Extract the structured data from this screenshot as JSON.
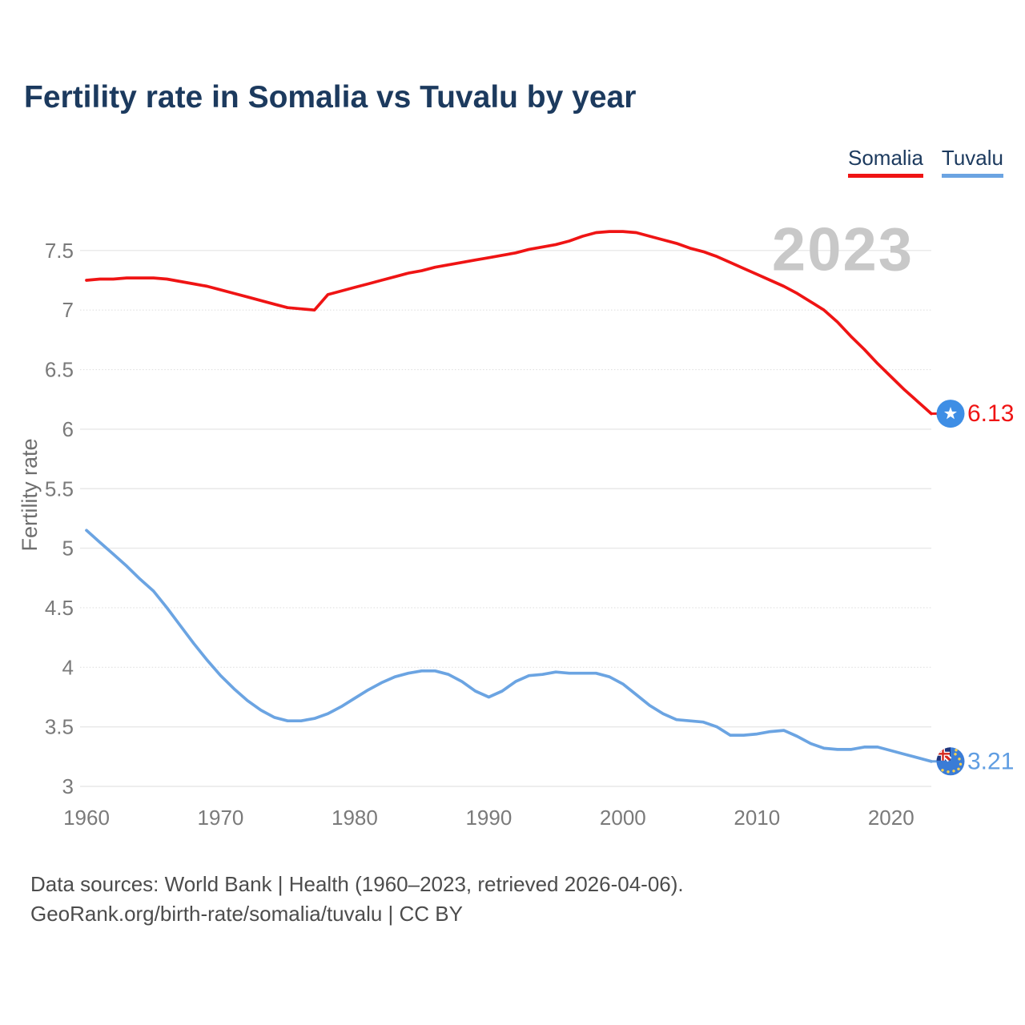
{
  "header": {
    "title": "Fertility rate in Somalia vs Tuvalu by year"
  },
  "legend": {
    "somalia": "Somalia",
    "tuvalu": "Tuvalu"
  },
  "chart_data": {
    "type": "line",
    "title": "Fertility rate in Somalia vs Tuvalu by year",
    "xlabel": "",
    "ylabel": "Fertility rate",
    "watermark": "2023",
    "grid": true,
    "legend_position": "top-right",
    "ylim": [
      3,
      7.5
    ],
    "x_range": [
      1960,
      2023
    ],
    "xticks": [
      1960,
      1970,
      1980,
      1990,
      2000,
      2010,
      2020
    ],
    "yticks": [
      {
        "label": "3",
        "value": 3.0,
        "style": "solid"
      },
      {
        "label": "3.5",
        "value": 3.5,
        "style": "solid"
      },
      {
        "label": "4",
        "value": 4.0,
        "style": "dotted"
      },
      {
        "label": "4.5",
        "value": 4.5,
        "style": "dotted"
      },
      {
        "label": "5",
        "value": 5.0,
        "style": "solid"
      },
      {
        "label": "5.5",
        "value": 5.5,
        "style": "solid"
      },
      {
        "label": "6",
        "value": 6.0,
        "style": "solid"
      },
      {
        "label": "6.5",
        "value": 6.5,
        "style": "dotted"
      },
      {
        "label": "7",
        "value": 7.0,
        "style": "dotted"
      },
      {
        "label": "7.5",
        "value": 7.5,
        "style": "solid"
      }
    ],
    "x": [
      1960,
      1961,
      1962,
      1963,
      1964,
      1965,
      1966,
      1967,
      1968,
      1969,
      1970,
      1971,
      1972,
      1973,
      1974,
      1975,
      1976,
      1977,
      1978,
      1979,
      1980,
      1981,
      1982,
      1983,
      1984,
      1985,
      1986,
      1987,
      1988,
      1989,
      1990,
      1991,
      1992,
      1993,
      1994,
      1995,
      1996,
      1997,
      1998,
      1999,
      2000,
      2001,
      2002,
      2003,
      2004,
      2005,
      2006,
      2007,
      2008,
      2009,
      2010,
      2011,
      2012,
      2013,
      2014,
      2015,
      2016,
      2017,
      2018,
      2019,
      2020,
      2021,
      2022,
      2023
    ],
    "series": [
      {
        "name": "Somalia",
        "color": "#ef1414",
        "end_label": "6.13",
        "end_value": 6.13,
        "flag": "somalia",
        "values": [
          7.25,
          7.26,
          7.26,
          7.27,
          7.27,
          7.27,
          7.26,
          7.24,
          7.22,
          7.2,
          7.17,
          7.14,
          7.11,
          7.08,
          7.05,
          7.02,
          7.01,
          7.0,
          7.13,
          7.16,
          7.19,
          7.22,
          7.25,
          7.28,
          7.31,
          7.33,
          7.36,
          7.38,
          7.4,
          7.42,
          7.44,
          7.46,
          7.48,
          7.51,
          7.53,
          7.55,
          7.58,
          7.62,
          7.65,
          7.66,
          7.66,
          7.65,
          7.62,
          7.59,
          7.56,
          7.52,
          7.49,
          7.45,
          7.4,
          7.35,
          7.3,
          7.25,
          7.2,
          7.14,
          7.07,
          7.0,
          6.9,
          6.78,
          6.67,
          6.55,
          6.44,
          6.33,
          6.23,
          6.13
        ]
      },
      {
        "name": "Tuvalu",
        "color": "#6ba4e2",
        "label_color": "#5f9de2",
        "end_label": "3.21",
        "end_value": 3.21,
        "flag": "tuvalu",
        "values": [
          5.15,
          5.05,
          4.95,
          4.85,
          4.74,
          4.64,
          4.5,
          4.35,
          4.2,
          4.06,
          3.93,
          3.82,
          3.72,
          3.64,
          3.58,
          3.55,
          3.55,
          3.57,
          3.61,
          3.67,
          3.74,
          3.81,
          3.87,
          3.92,
          3.95,
          3.97,
          3.97,
          3.94,
          3.88,
          3.8,
          3.75,
          3.8,
          3.88,
          3.93,
          3.94,
          3.96,
          3.95,
          3.95,
          3.95,
          3.92,
          3.86,
          3.77,
          3.68,
          3.61,
          3.56,
          3.55,
          3.54,
          3.5,
          3.43,
          3.43,
          3.44,
          3.46,
          3.47,
          3.42,
          3.36,
          3.32,
          3.31,
          3.31,
          3.33,
          3.33,
          3.3,
          3.27,
          3.24,
          3.21
        ]
      }
    ],
    "colors": {
      "grid": "#e8e8e8",
      "tick_label": "#7a7a7a",
      "axis_label": "#6e6e6e",
      "watermark": "#c8c8c8",
      "somalia_flag_blue": "#3e8ee5",
      "tuvalu_flag_blue": "#3a7cd6",
      "flag_red": "#d5281e",
      "flag_navy": "#20357c",
      "flag_star_yellow": "#ffd34d"
    }
  },
  "footer": {
    "line1": "Data sources: World Bank | Health (1960–2023, retrieved 2026-04-06).",
    "line2": "GeoRank.org/birth-rate/somalia/tuvalu | CC BY"
  }
}
